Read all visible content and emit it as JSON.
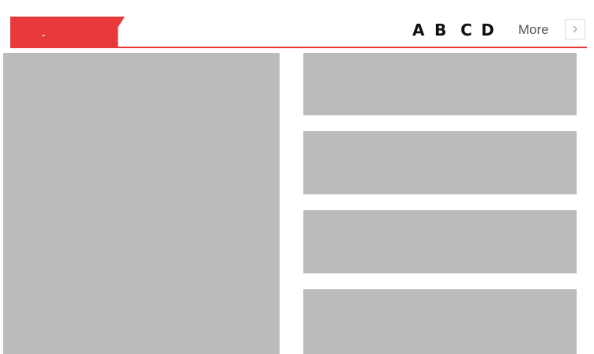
{
  "header": {
    "section_label": "-",
    "nav_items": [
      "A",
      "B",
      "C",
      "D"
    ],
    "more_label": "More",
    "next_icon": "chevron-right-icon"
  },
  "colors": {
    "accent": "#e8393a",
    "placeholder": "#bbbbbb",
    "nav_text": "#111111",
    "more_text": "#555555"
  }
}
